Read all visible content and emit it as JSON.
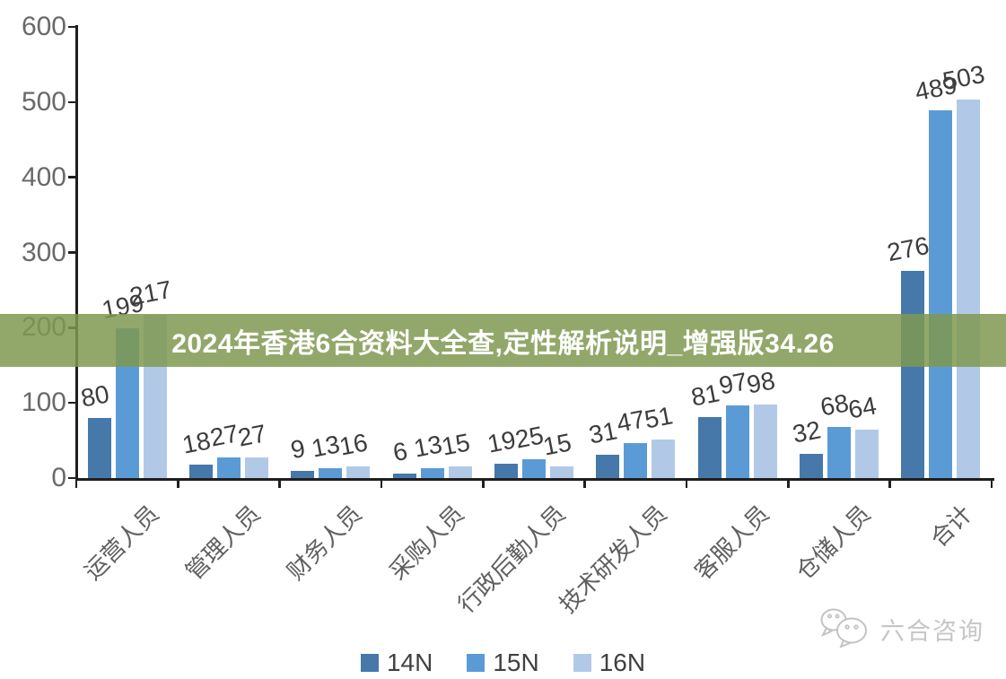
{
  "banner": {
    "text": "2024年香港6合资料大全查,定性解析说明_增强版34.26",
    "bg_color": "rgba(127,153,80,0.85)",
    "text_color": "#ffffff"
  },
  "watermark": {
    "brand": "六合咨询",
    "icon": "chat-bubbles-icon",
    "color": "#c6c6c6"
  },
  "chart_data": {
    "type": "bar",
    "title": "",
    "xlabel": "",
    "ylabel": "",
    "categories": [
      "运营人员",
      "管理人员",
      "财务人员",
      "采购人员",
      "行政后勤人员",
      "技术研发人员",
      "客服人员",
      "仓储人员",
      "合计"
    ],
    "series": [
      {
        "name": "14N",
        "color": "#4678A9",
        "values": [
          80,
          18,
          9,
          6,
          19,
          31,
          81,
          32,
          276
        ]
      },
      {
        "name": "15N",
        "color": "#5B9BD5",
        "values": [
          199,
          27,
          13,
          13,
          25,
          47,
          97,
          68,
          489
        ]
      },
      {
        "name": "16N",
        "color": "#B1C9E6",
        "values": [
          217,
          27,
          16,
          15,
          15,
          51,
          98,
          64,
          503
        ]
      }
    ],
    "ylim": [
      0,
      600
    ],
    "yticks": [
      0,
      100,
      200,
      300,
      400,
      500,
      600
    ],
    "grid": false,
    "legend_position": "bottom",
    "data_labels": true,
    "axis_color": "#1f1f1f"
  }
}
